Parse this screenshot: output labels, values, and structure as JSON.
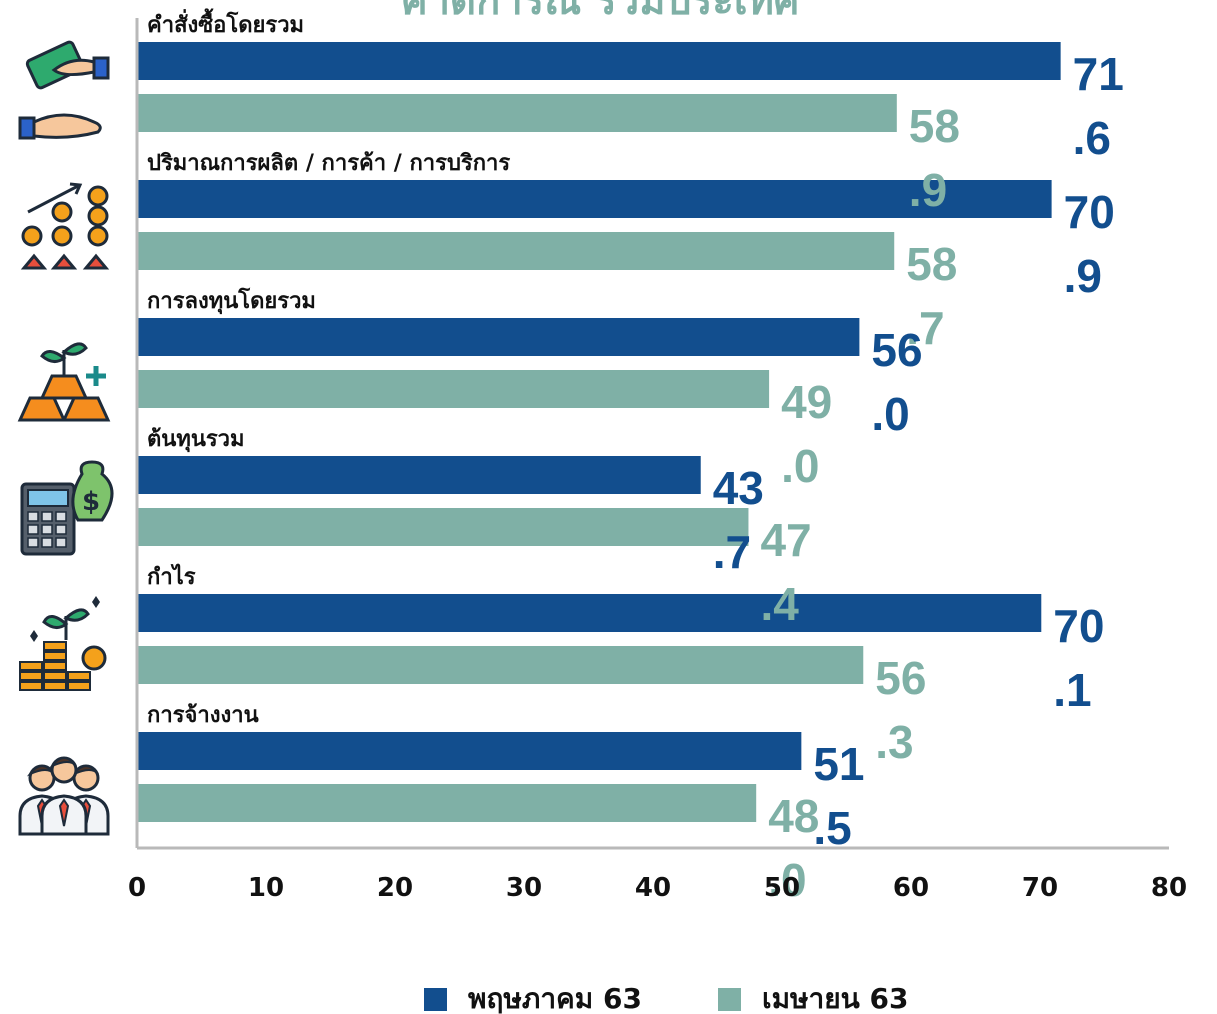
{
  "chart_data": {
    "type": "bar",
    "orientation": "horizontal",
    "title": "คาดการณ์ รวมประเทศ",
    "categories": [
      "คำสั่งซื้อโดยรวม",
      "ปริมาณการผลิต / การค้า / การบริการ",
      "การลงทุนโดยรวม",
      "ต้นทุนรวม",
      "กำไร",
      "การจ้างงาน"
    ],
    "category_icons": [
      "money-handshake-icon",
      "coins-growth-icon",
      "gold-investment-icon",
      "calculator-money-bag-icon",
      "plant-coins-profit-icon",
      "employees-group-icon"
    ],
    "series": [
      {
        "name": "พฤษภาคม 63",
        "color": "#124e8e",
        "values": [
          71.6,
          70.9,
          56.0,
          43.7,
          70.1,
          51.5
        ]
      },
      {
        "name": "เมษายน 63",
        "color": "#7fb0a6",
        "values": [
          58.9,
          58.7,
          49.0,
          47.4,
          56.3,
          48.0
        ]
      }
    ],
    "value_labels": {
      "พฤษภาคม 63": [
        [
          "71",
          ".6"
        ],
        [
          "70",
          ".9"
        ],
        [
          "56",
          ".0"
        ],
        [
          "43",
          ".7"
        ],
        [
          "70",
          ".1"
        ],
        [
          "51",
          ".5"
        ]
      ],
      "เมษายน 63": [
        [
          "58",
          ".9"
        ],
        [
          "58",
          ".7"
        ],
        [
          "49",
          ".0"
        ],
        [
          "47",
          ".4"
        ],
        [
          "56",
          ".3"
        ],
        [
          "48",
          ".0"
        ]
      ]
    },
    "xlim": [
      0,
      80
    ],
    "xticks": [
      "0",
      "10",
      "20",
      "30",
      "40",
      "50",
      "60",
      "70",
      "80"
    ],
    "xlabel": "",
    "ylabel": "",
    "grid": false,
    "legend_position": "bottom"
  }
}
